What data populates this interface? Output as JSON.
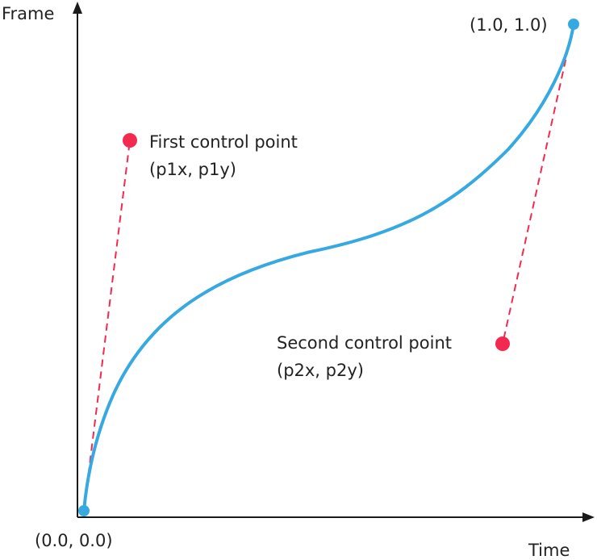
{
  "axes": {
    "y_label": "Frame",
    "x_label": "Time"
  },
  "points": {
    "origin_label": "(0.0, 0.0)",
    "end_label": "(1.0, 1.0)",
    "first_control": {
      "title": "First control point",
      "coords": "(p1x, p1y)"
    },
    "second_control": {
      "title": "Second control point",
      "coords": "(p2x, p2y)"
    }
  },
  "colors": {
    "axis": "#1a1a1a",
    "curve": "#36a9e1",
    "endpoint": "#36a9e1",
    "control_point": "#f4294f",
    "control_line": "#f4294f",
    "text": "#222222"
  }
}
